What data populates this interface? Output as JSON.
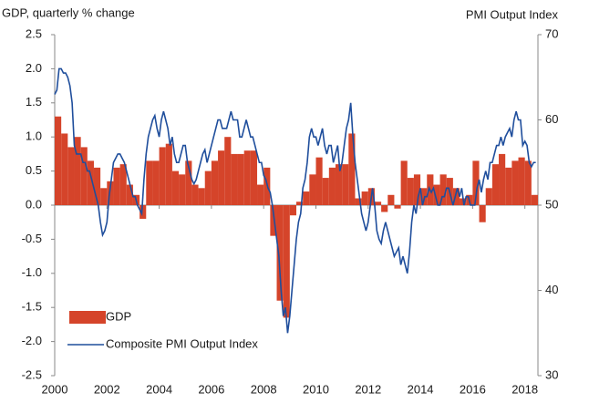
{
  "chart_data": {
    "type": "combo",
    "y_title": "GDP, quarterly % change",
    "y2_title": "PMI Output Index",
    "xlim": [
      2000,
      2018.5
    ],
    "xticks": [
      2000,
      2002,
      2004,
      2006,
      2008,
      2010,
      2012,
      2014,
      2016,
      2018
    ],
    "ylim": [
      -2.5,
      2.5
    ],
    "yticks": [
      2.5,
      {
        "value": 2,
        "label": "2.0"
      },
      1.5,
      {
        "value": 1,
        "label": "1.0"
      },
      0.5,
      {
        "value": 0,
        "label": "0.0"
      },
      -0.5,
      {
        "value": -1,
        "label": "-1.0"
      },
      -1.5,
      {
        "value": -2,
        "label": "-2.0"
      },
      -2.5
    ],
    "y2lim": [
      30,
      70
    ],
    "y2ticks": [
      70,
      60,
      50,
      40,
      30
    ],
    "legend": "lower left",
    "series": [
      {
        "name": "GDP",
        "type": "bar",
        "color": "#d5442a",
        "x": [
          2000,
          2000.25,
          2000.5,
          2000.75,
          2001,
          2001.25,
          2001.5,
          2001.75,
          2002,
          2002.25,
          2002.5,
          2002.75,
          2003,
          2003.25,
          2003.5,
          2003.75,
          2004,
          2004.25,
          2004.5,
          2004.75,
          2005,
          2005.25,
          2005.5,
          2005.75,
          2006,
          2006.25,
          2006.5,
          2006.75,
          2007,
          2007.25,
          2007.5,
          2007.75,
          2008,
          2008.25,
          2008.5,
          2008.75,
          2009,
          2009.25,
          2009.5,
          2009.75,
          2010,
          2010.25,
          2010.5,
          2010.75,
          2011,
          2011.25,
          2011.5,
          2011.75,
          2012,
          2012.25,
          2012.5,
          2012.75,
          2013,
          2013.25,
          2013.5,
          2013.75,
          2014,
          2014.25,
          2014.5,
          2014.75,
          2015,
          2015.25,
          2015.5,
          2015.75,
          2016,
          2016.25,
          2016.5,
          2016.75,
          2017,
          2017.25,
          2017.5,
          2017.75,
          2018,
          2018.25
        ],
        "values": [
          1.3,
          1.05,
          0.85,
          1.0,
          0.85,
          0.65,
          0.55,
          0.25,
          0.35,
          0.55,
          0.6,
          0.3,
          0.15,
          -0.2,
          0.65,
          0.65,
          0.85,
          0.9,
          0.5,
          0.45,
          0.65,
          0.3,
          0.25,
          0.5,
          0.65,
          0.8,
          1.0,
          0.75,
          0.75,
          0.8,
          0.8,
          0.3,
          0.55,
          -0.45,
          -1.4,
          -1.65,
          -0.15,
          0.05,
          0.2,
          0.45,
          0.7,
          0.4,
          0.55,
          0.6,
          0.6,
          1.05,
          0.1,
          0.2,
          0.25,
          0.05,
          -0.1,
          0.15,
          -0.05,
          0.65,
          0.4,
          0.45,
          0.25,
          0.45,
          0.3,
          0.45,
          0.4,
          0.25,
          0.1,
          0.15,
          0.65,
          -0.25,
          0.25,
          0.6,
          0.75,
          0.55,
          0.65,
          0.7,
          0.65,
          0.15
        ]
      },
      {
        "name": "Composite PMI Output Index",
        "type": "line",
        "axis": "y2",
        "color": "#1f4e9c",
        "x": [
          2000,
          2000.083,
          2000.167,
          2000.25,
          2000.333,
          2000.417,
          2000.5,
          2000.583,
          2000.667,
          2000.75,
          2000.833,
          2000.917,
          2001,
          2001.083,
          2001.167,
          2001.25,
          2001.333,
          2001.417,
          2001.5,
          2001.583,
          2001.667,
          2001.75,
          2001.833,
          2001.917,
          2002,
          2002.083,
          2002.167,
          2002.25,
          2002.333,
          2002.417,
          2002.5,
          2002.583,
          2002.667,
          2002.75,
          2002.833,
          2002.917,
          2003,
          2003.083,
          2003.167,
          2003.25,
          2003.333,
          2003.417,
          2003.5,
          2003.583,
          2003.667,
          2003.75,
          2003.833,
          2003.917,
          2004,
          2004.083,
          2004.167,
          2004.25,
          2004.333,
          2004.417,
          2004.5,
          2004.583,
          2004.667,
          2004.75,
          2004.833,
          2004.917,
          2005,
          2005.083,
          2005.167,
          2005.25,
          2005.333,
          2005.417,
          2005.5,
          2005.583,
          2005.667,
          2005.75,
          2005.833,
          2005.917,
          2006,
          2006.083,
          2006.167,
          2006.25,
          2006.333,
          2006.417,
          2006.5,
          2006.583,
          2006.667,
          2006.75,
          2006.833,
          2006.917,
          2007,
          2007.083,
          2007.167,
          2007.25,
          2007.333,
          2007.417,
          2007.5,
          2007.583,
          2007.667,
          2007.75,
          2007.833,
          2007.917,
          2008,
          2008.083,
          2008.167,
          2008.25,
          2008.333,
          2008.417,
          2008.5,
          2008.583,
          2008.667,
          2008.75,
          2008.833,
          2008.917,
          2009,
          2009.083,
          2009.167,
          2009.25,
          2009.333,
          2009.417,
          2009.5,
          2009.583,
          2009.667,
          2009.75,
          2009.833,
          2009.917,
          2010,
          2010.083,
          2010.167,
          2010.25,
          2010.333,
          2010.417,
          2010.5,
          2010.583,
          2010.667,
          2010.75,
          2010.833,
          2010.917,
          2011,
          2011.083,
          2011.167,
          2011.25,
          2011.333,
          2011.417,
          2011.5,
          2011.583,
          2011.667,
          2011.75,
          2011.833,
          2011.917,
          2012,
          2012.083,
          2012.167,
          2012.25,
          2012.333,
          2012.417,
          2012.5,
          2012.583,
          2012.667,
          2012.75,
          2012.833,
          2012.917,
          2013,
          2013.083,
          2013.167,
          2013.25,
          2013.333,
          2013.417,
          2013.5,
          2013.583,
          2013.667,
          2013.75,
          2013.833,
          2013.917,
          2014,
          2014.083,
          2014.167,
          2014.25,
          2014.333,
          2014.417,
          2014.5,
          2014.583,
          2014.667,
          2014.75,
          2014.833,
          2014.917,
          2015,
          2015.083,
          2015.167,
          2015.25,
          2015.333,
          2015.417,
          2015.5,
          2015.583,
          2015.667,
          2015.75,
          2015.833,
          2015.917,
          2016,
          2016.083,
          2016.167,
          2016.25,
          2016.333,
          2016.417,
          2016.5,
          2016.583,
          2016.667,
          2016.75,
          2016.833,
          2016.917,
          2017,
          2017.083,
          2017.167,
          2017.25,
          2017.333,
          2017.417,
          2017.5,
          2017.583,
          2017.667,
          2017.75,
          2017.833,
          2017.917,
          2018,
          2018.083,
          2018.167,
          2018.25,
          2018.333,
          2018.417
        ],
        "values": [
          63,
          63.5,
          66,
          66,
          65.5,
          65.5,
          65,
          64,
          62,
          57,
          56,
          56,
          56,
          55,
          55,
          54,
          54,
          53,
          52,
          51,
          50,
          48,
          46.5,
          47,
          48,
          51,
          53,
          55,
          55.5,
          56,
          56,
          55.5,
          55,
          54,
          53,
          52,
          51,
          51,
          50,
          49.5,
          49,
          53,
          56,
          58,
          59,
          60,
          60.5,
          59,
          58,
          60,
          61,
          60,
          59,
          57,
          58,
          56,
          55,
          55,
          56,
          57,
          57,
          55,
          54,
          53,
          52.5,
          53,
          54,
          55,
          56,
          56.5,
          55,
          56,
          57,
          58,
          59,
          60,
          60,
          59,
          59,
          59,
          60,
          61,
          60,
          60,
          60,
          58,
          58,
          59,
          60,
          59,
          58,
          58,
          57,
          56,
          55,
          55,
          53.5,
          53,
          52,
          51.5,
          50,
          48,
          46,
          44,
          40,
          37,
          38,
          35,
          37,
          40,
          43,
          46,
          48,
          49,
          52,
          53,
          55,
          58,
          59,
          58,
          58,
          57,
          58,
          59,
          57,
          56,
          57,
          57,
          55,
          56,
          57,
          54,
          55,
          57,
          59,
          60,
          62,
          58,
          55,
          53,
          51,
          49,
          48,
          47,
          48,
          50,
          52,
          50,
          47,
          46,
          45.5,
          47,
          48,
          47,
          46,
          45,
          44,
          44.5,
          45,
          43,
          44,
          43,
          42,
          44.5,
          48,
          50,
          49,
          51,
          52,
          50,
          51,
          51,
          52,
          51.5,
          52,
          51,
          50,
          50,
          51,
          51,
          52,
          52,
          51,
          50,
          51,
          52,
          51,
          52,
          50,
          51,
          51,
          50,
          50,
          50,
          52,
          53,
          51.5,
          53,
          54,
          53,
          55,
          55,
          56,
          57,
          57,
          58,
          57,
          58,
          58.5,
          59,
          58,
          60,
          61,
          60,
          60,
          57,
          57.5,
          57,
          55,
          54.5,
          55,
          55
        ]
      }
    ]
  }
}
